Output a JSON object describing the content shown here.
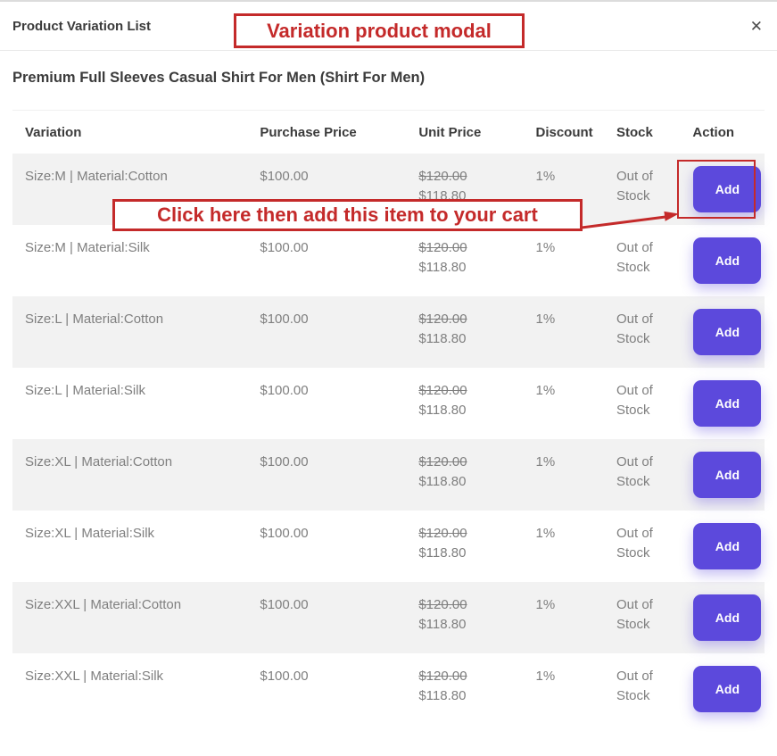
{
  "modal": {
    "title": "Product Variation List",
    "close_icon": "✕",
    "product_title": "Premium Full Sleeves Casual Shirt For Men (Shirt For Men)"
  },
  "table": {
    "headers": [
      "Variation",
      "Purchase Price",
      "Unit Price",
      "Discount",
      "Stock",
      "Action"
    ],
    "rows": [
      {
        "variation": "Size:M | Material:Cotton",
        "purchase_price": "$100.00",
        "unit_price_old": "$120.00",
        "unit_price_new": "$118.80",
        "discount": "1%",
        "stock": "Out of Stock",
        "action_label": "Add"
      },
      {
        "variation": "Size:M | Material:Silk",
        "purchase_price": "$100.00",
        "unit_price_old": "$120.00",
        "unit_price_new": "$118.80",
        "discount": "1%",
        "stock": "Out of Stock",
        "action_label": "Add"
      },
      {
        "variation": "Size:L | Material:Cotton",
        "purchase_price": "$100.00",
        "unit_price_old": "$120.00",
        "unit_price_new": "$118.80",
        "discount": "1%",
        "stock": "Out of Stock",
        "action_label": "Add"
      },
      {
        "variation": "Size:L | Material:Silk",
        "purchase_price": "$100.00",
        "unit_price_old": "$120.00",
        "unit_price_new": "$118.80",
        "discount": "1%",
        "stock": "Out of Stock",
        "action_label": "Add"
      },
      {
        "variation": "Size:XL | Material:Cotton",
        "purchase_price": "$100.00",
        "unit_price_old": "$120.00",
        "unit_price_new": "$118.80",
        "discount": "1%",
        "stock": "Out of Stock",
        "action_label": "Add"
      },
      {
        "variation": "Size:XL | Material:Silk",
        "purchase_price": "$100.00",
        "unit_price_old": "$120.00",
        "unit_price_new": "$118.80",
        "discount": "1%",
        "stock": "Out of Stock",
        "action_label": "Add"
      },
      {
        "variation": "Size:XXL | Material:Cotton",
        "purchase_price": "$100.00",
        "unit_price_old": "$120.00",
        "unit_price_new": "$118.80",
        "discount": "1%",
        "stock": "Out of Stock",
        "action_label": "Add"
      },
      {
        "variation": "Size:XXL | Material:Silk",
        "purchase_price": "$100.00",
        "unit_price_old": "$120.00",
        "unit_price_new": "$118.80",
        "discount": "1%",
        "stock": "Out of Stock",
        "action_label": "Add"
      }
    ]
  },
  "annotations": {
    "modal_label": "Variation product modal",
    "add_hint": "Click here then add this item to your cart"
  },
  "colors": {
    "button_purple": "#5c49dc",
    "annotation_red": "#c42a2a",
    "stripe": "#f2f2f2"
  }
}
